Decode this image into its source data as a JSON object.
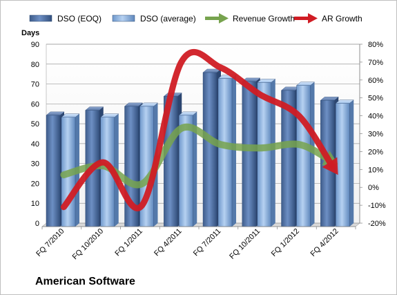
{
  "chart_data": {
    "type": "bar",
    "title": "American Software",
    "ylabel": "Days",
    "categories": [
      "FQ 7/2010",
      "FQ 10/2010",
      "FQ 1/2011",
      "FQ 4/2011",
      "FQ 7/2011",
      "FQ 10/2011",
      "FQ 1/2012",
      "FQ 4/2012"
    ],
    "ylim": [
      0,
      90
    ],
    "yticks": [
      "0",
      "10",
      "20",
      "30",
      "40",
      "50",
      "60",
      "70",
      "80",
      "90"
    ],
    "y2lim": [
      -20,
      80
    ],
    "y2ticks": [
      "-20%",
      "-10%",
      "0%",
      "10%",
      "20%",
      "30%",
      "40%",
      "50%",
      "60%",
      "70%",
      "80%"
    ],
    "grid": true,
    "legend_position": "top",
    "series": [
      {
        "name": "DSO (EOQ)",
        "kind": "bar",
        "axis": "left",
        "color": "#4f6fa0",
        "values": [
          56,
          58.5,
          60.5,
          65.5,
          77.5,
          73,
          68.5,
          63.5
        ]
      },
      {
        "name": "DSO (average)",
        "kind": "bar",
        "axis": "left",
        "color": "#8fb4e3",
        "values": [
          55,
          55,
          60.5,
          56,
          74.5,
          72.5,
          71,
          62
        ]
      },
      {
        "name": "Revenue Growth",
        "kind": "line",
        "axis": "right",
        "color": "#77a34e",
        "values": [
          7,
          12,
          2,
          33,
          24,
          22,
          24,
          13
        ]
      },
      {
        "name": "AR Growth",
        "kind": "line",
        "axis": "right",
        "color": "#d01c24",
        "values": [
          -11,
          14,
          -10,
          70,
          67,
          52,
          40,
          7
        ]
      }
    ]
  }
}
